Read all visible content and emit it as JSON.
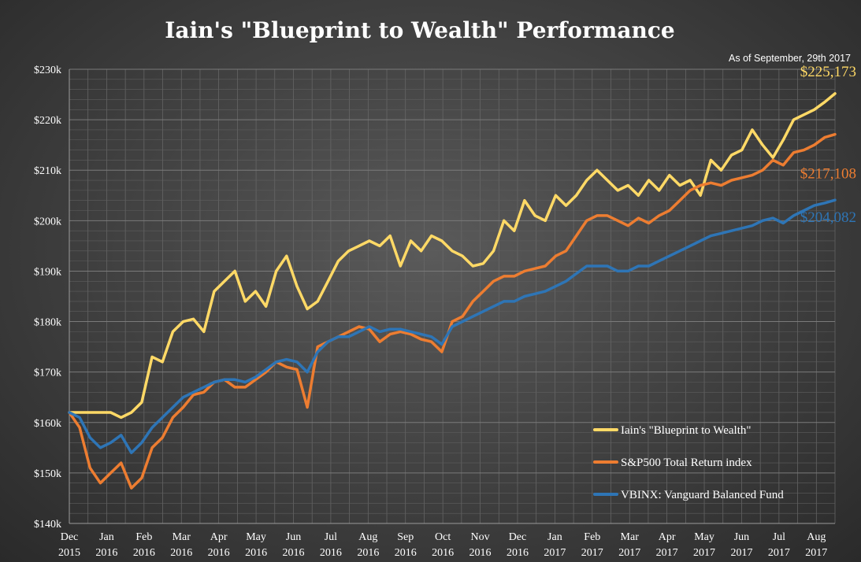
{
  "chart_data": {
    "type": "line",
    "title": "Iain's \"Blueprint to Wealth\" Performance",
    "subtitle": "As of September, 29th 2017",
    "y_ticks": [
      "$140k",
      "$150k",
      "$160k",
      "$170k",
      "$180k",
      "$190k",
      "$200k",
      "$210k",
      "$220k",
      "$230k"
    ],
    "ylim": [
      140000,
      230000
    ],
    "x_ticks": [
      {
        "month": "Dec",
        "year": "2015"
      },
      {
        "month": "Jan",
        "year": "2016"
      },
      {
        "month": "Feb",
        "year": "2016"
      },
      {
        "month": "Mar",
        "year": "2016"
      },
      {
        "month": "Apr",
        "year": "2016"
      },
      {
        "month": "May",
        "year": "2016"
      },
      {
        "month": "Jun",
        "year": "2016"
      },
      {
        "month": "Jul",
        "year": "2016"
      },
      {
        "month": "Aug",
        "year": "2016"
      },
      {
        "month": "Sep",
        "year": "2016"
      },
      {
        "month": "Oct",
        "year": "2016"
      },
      {
        "month": "Nov",
        "year": "2016"
      },
      {
        "month": "Dec",
        "year": "2016"
      },
      {
        "month": "Jan",
        "year": "2017"
      },
      {
        "month": "Feb",
        "year": "2017"
      },
      {
        "month": "Mar",
        "year": "2017"
      },
      {
        "month": "Apr",
        "year": "2017"
      },
      {
        "month": "May",
        "year": "2017"
      },
      {
        "month": "Jun",
        "year": "2017"
      },
      {
        "month": "Jul",
        "year": "2017"
      },
      {
        "month": "Aug",
        "year": "2017"
      }
    ],
    "grid": true,
    "legend_position": "bottom-right",
    "series": [
      {
        "name": "Iain's \"Blueprint to Wealth\"",
        "color": "#FFD966",
        "end_label": "$225,173",
        "values": [
          162000,
          162000,
          162000,
          162000,
          162000,
          161000,
          162000,
          164000,
          173000,
          172000,
          178000,
          180000,
          180500,
          178000,
          186000,
          188000,
          190000,
          184000,
          186000,
          183000,
          190000,
          193000,
          187000,
          182500,
          184000,
          188000,
          192000,
          194000,
          195000,
          196000,
          195000,
          197000,
          191000,
          196000,
          194000,
          197000,
          196000,
          194000,
          193000,
          191000,
          191500,
          194000,
          200000,
          198000,
          204000,
          201000,
          200000,
          205000,
          203000,
          205000,
          208000,
          210000,
          208000,
          206000,
          207000,
          205000,
          208000,
          206000,
          209000,
          207000,
          208000,
          205000,
          212000,
          210000,
          213000,
          214000,
          218000,
          215000,
          212500,
          216000,
          220000,
          221000,
          222000,
          223500,
          225173
        ]
      },
      {
        "name": "S&P500 Total Return index",
        "color": "#ED7D31",
        "end_label": "$217,108",
        "values": [
          162000,
          159000,
          151000,
          148000,
          150000,
          152000,
          147000,
          149000,
          155000,
          157000,
          161000,
          163000,
          165500,
          166000,
          168000,
          168500,
          167000,
          167000,
          168500,
          170000,
          172000,
          171000,
          170500,
          163000,
          175000,
          176000,
          177000,
          178000,
          179000,
          178500,
          176000,
          177500,
          178000,
          177500,
          176500,
          176000,
          174000,
          180000,
          181000,
          184000,
          186000,
          188000,
          189000,
          189000,
          190000,
          190500,
          191000,
          193000,
          194000,
          197000,
          200000,
          201000,
          201000,
          200000,
          199000,
          200500,
          199500,
          201000,
          202000,
          204000,
          206000,
          207000,
          207500,
          207000,
          208000,
          208500,
          209000,
          210000,
          212000,
          211000,
          213500,
          214000,
          215000,
          216500,
          217108
        ]
      },
      {
        "name": "VBINX: Vanguard Balanced Fund",
        "color": "#2E75B6",
        "end_label": "$204,082",
        "values": [
          162000,
          161000,
          157000,
          155000,
          156000,
          157500,
          154000,
          156000,
          159000,
          161000,
          163000,
          165000,
          166000,
          167000,
          168000,
          168500,
          168500,
          168000,
          169000,
          170500,
          172000,
          172500,
          172000,
          170000,
          174000,
          176000,
          177000,
          177000,
          178000,
          179000,
          178000,
          178500,
          178500,
          178000,
          177500,
          177000,
          175500,
          179000,
          180000,
          181000,
          182000,
          183000,
          184000,
          184000,
          185000,
          185500,
          186000,
          187000,
          188000,
          189500,
          191000,
          191000,
          191000,
          190000,
          190000,
          191000,
          191000,
          192000,
          193000,
          194000,
          195000,
          196000,
          197000,
          197500,
          198000,
          198500,
          199000,
          200000,
          200500,
          199500,
          201000,
          202000,
          203000,
          203500,
          204082
        ]
      }
    ]
  }
}
